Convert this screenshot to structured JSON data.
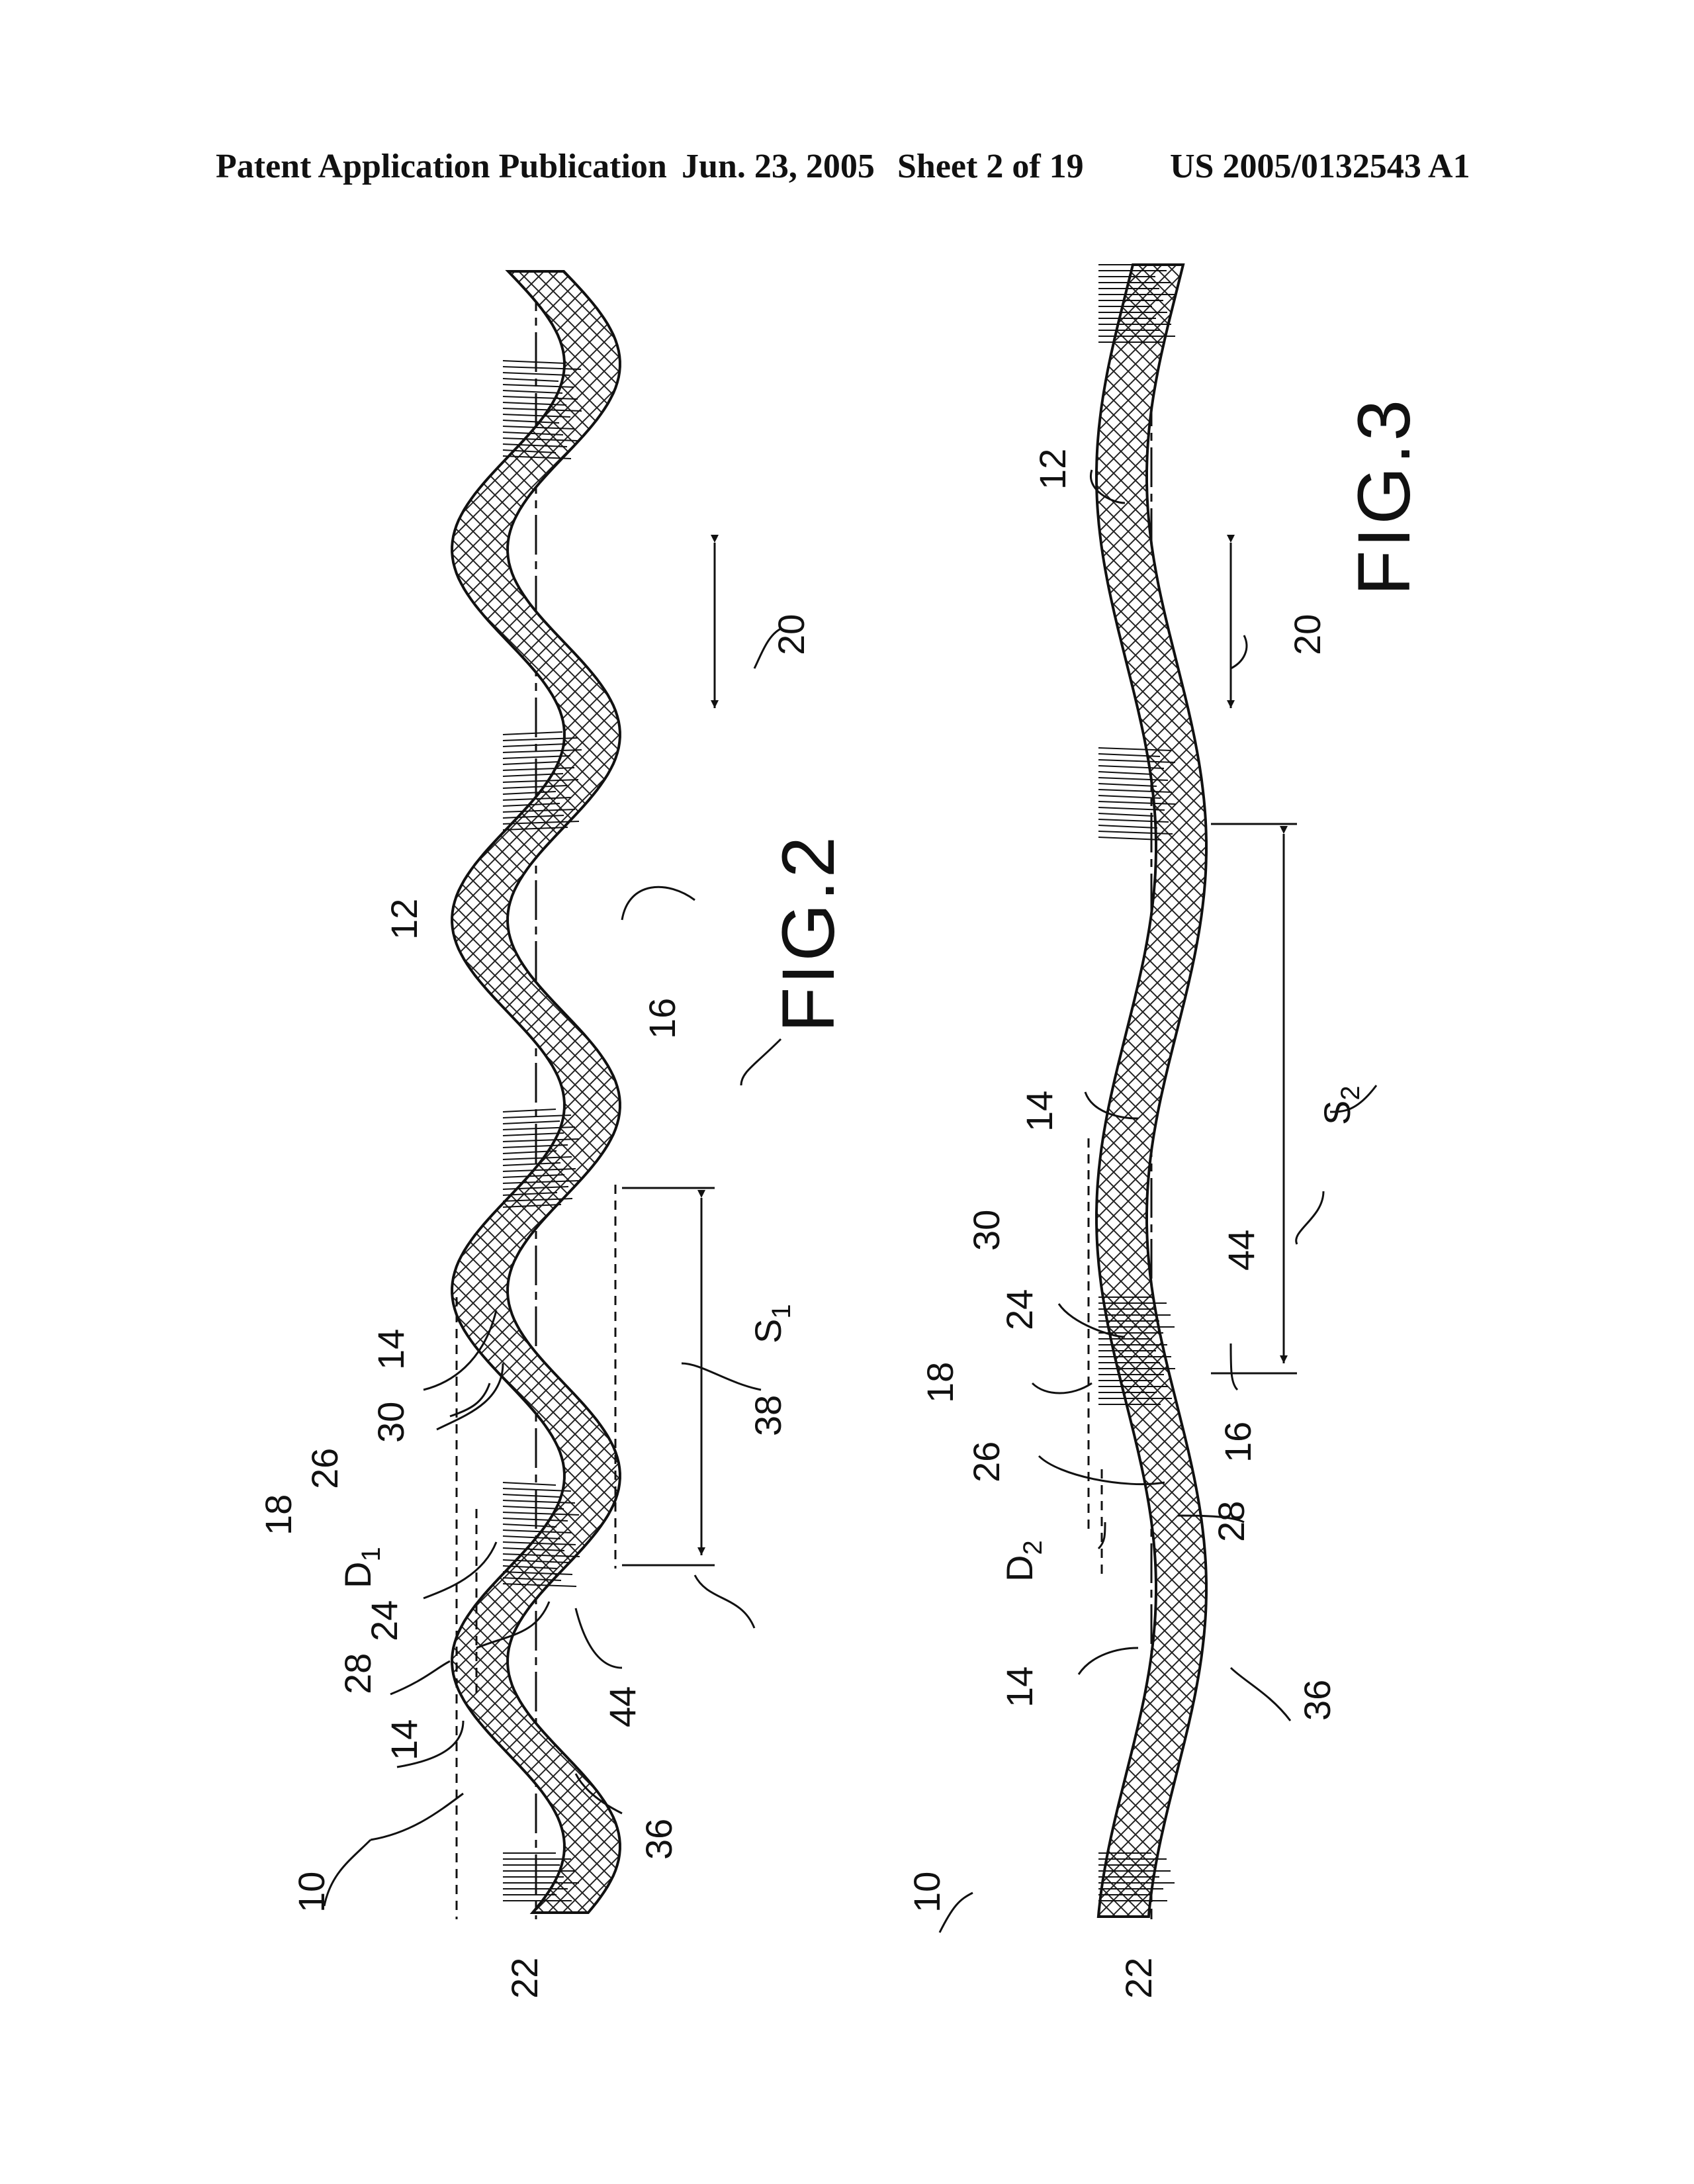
{
  "header": {
    "publication": "Patent Application Publication",
    "date": "Jun. 23, 2005",
    "sheet": "Sheet 2 of 19",
    "number": "US 2005/0132543 A1"
  },
  "fig2": {
    "title": "FIG.2",
    "labels": {
      "r10": "10",
      "r12": "12",
      "r14a": "14",
      "r14b": "14",
      "r16": "16",
      "r18": "18",
      "r20": "20",
      "r22": "22",
      "r24": "24",
      "r26": "26",
      "r28": "28",
      "r30": "30",
      "r36": "36",
      "r38": "38",
      "r44": "44",
      "D": "D",
      "D_sub": "1",
      "S": "S",
      "S_sub": "1"
    }
  },
  "fig3": {
    "title": "FIG.3",
    "labels": {
      "r10": "10",
      "r12": "12",
      "r14a": "14",
      "r14b": "14",
      "r16": "16",
      "r18": "18",
      "r20": "20",
      "r22": "22",
      "r24": "24",
      "r26": "26",
      "r28": "28",
      "r30": "30",
      "r36": "36",
      "r44": "44",
      "D": "D",
      "D_sub": "2",
      "S": "S",
      "S_sub": "2"
    }
  }
}
